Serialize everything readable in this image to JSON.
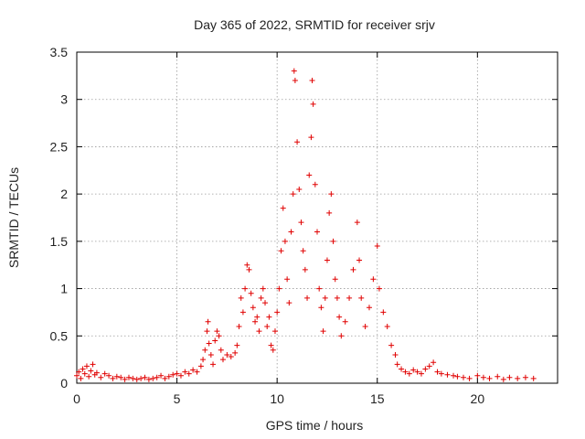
{
  "chart_data": {
    "type": "scatter",
    "title": "Day 365 of 2022, SRMTID for receiver srjv",
    "xlabel": "GPS time / hours",
    "ylabel": "SRMTID / TECUs",
    "xlim": [
      0,
      24
    ],
    "ylim": [
      0,
      3.5
    ],
    "xticks": [
      0,
      5,
      10,
      15,
      20
    ],
    "xtick_labels": [
      "0",
      "5",
      "10",
      "15",
      "20"
    ],
    "yticks": [
      0,
      0.5,
      1,
      1.5,
      2,
      2.5,
      3,
      3.5
    ],
    "ytick_labels": [
      "0",
      "0.5",
      "1",
      "1.5",
      "2",
      "2.5",
      "3",
      "3.5"
    ],
    "grid": true,
    "marker": "plus",
    "color": "#e00000",
    "series": [
      {
        "name": "srjv",
        "points": [
          [
            0.0,
            0.08
          ],
          [
            0.1,
            0.12
          ],
          [
            0.2,
            0.05
          ],
          [
            0.3,
            0.15
          ],
          [
            0.4,
            0.1
          ],
          [
            0.5,
            0.18
          ],
          [
            0.6,
            0.07
          ],
          [
            0.7,
            0.13
          ],
          [
            0.8,
            0.2
          ],
          [
            0.9,
            0.09
          ],
          [
            1.0,
            0.11
          ],
          [
            1.2,
            0.06
          ],
          [
            1.4,
            0.1
          ],
          [
            1.6,
            0.08
          ],
          [
            1.8,
            0.05
          ],
          [
            2.0,
            0.07
          ],
          [
            2.2,
            0.06
          ],
          [
            2.4,
            0.04
          ],
          [
            2.6,
            0.06
          ],
          [
            2.8,
            0.05
          ],
          [
            3.0,
            0.04
          ],
          [
            3.2,
            0.05
          ],
          [
            3.4,
            0.06
          ],
          [
            3.6,
            0.04
          ],
          [
            3.8,
            0.05
          ],
          [
            4.0,
            0.06
          ],
          [
            4.2,
            0.08
          ],
          [
            4.4,
            0.05
          ],
          [
            4.6,
            0.07
          ],
          [
            4.8,
            0.09
          ],
          [
            5.0,
            0.1
          ],
          [
            5.2,
            0.08
          ],
          [
            5.4,
            0.12
          ],
          [
            5.6,
            0.1
          ],
          [
            5.8,
            0.14
          ],
          [
            6.0,
            0.12
          ],
          [
            6.2,
            0.18
          ],
          [
            6.3,
            0.25
          ],
          [
            6.4,
            0.35
          ],
          [
            6.5,
            0.55
          ],
          [
            6.55,
            0.65
          ],
          [
            6.6,
            0.42
          ],
          [
            6.7,
            0.3
          ],
          [
            6.8,
            0.2
          ],
          [
            6.9,
            0.45
          ],
          [
            7.0,
            0.55
          ],
          [
            7.1,
            0.5
          ],
          [
            7.2,
            0.35
          ],
          [
            7.3,
            0.25
          ],
          [
            7.5,
            0.3
          ],
          [
            7.7,
            0.28
          ],
          [
            7.9,
            0.32
          ],
          [
            8.0,
            0.4
          ],
          [
            8.1,
            0.6
          ],
          [
            8.2,
            0.9
          ],
          [
            8.3,
            0.75
          ],
          [
            8.4,
            1.0
          ],
          [
            8.5,
            1.25
          ],
          [
            8.6,
            1.2
          ],
          [
            8.7,
            0.95
          ],
          [
            8.8,
            0.8
          ],
          [
            8.9,
            0.65
          ],
          [
            9.0,
            0.7
          ],
          [
            9.1,
            0.55
          ],
          [
            9.2,
            0.9
          ],
          [
            9.3,
            1.0
          ],
          [
            9.4,
            0.85
          ],
          [
            9.5,
            0.6
          ],
          [
            9.6,
            0.7
          ],
          [
            9.7,
            0.4
          ],
          [
            9.8,
            0.35
          ],
          [
            9.9,
            0.55
          ],
          [
            10.0,
            0.75
          ],
          [
            10.1,
            1.0
          ],
          [
            10.2,
            1.4
          ],
          [
            10.3,
            1.85
          ],
          [
            10.4,
            1.5
          ],
          [
            10.5,
            1.1
          ],
          [
            10.6,
            0.85
          ],
          [
            10.7,
            1.6
          ],
          [
            10.8,
            2.0
          ],
          [
            10.85,
            3.3
          ],
          [
            10.9,
            3.2
          ],
          [
            11.0,
            2.55
          ],
          [
            11.1,
            2.05
          ],
          [
            11.2,
            1.7
          ],
          [
            11.3,
            1.4
          ],
          [
            11.4,
            1.2
          ],
          [
            11.5,
            0.9
          ],
          [
            11.6,
            2.2
          ],
          [
            11.7,
            2.6
          ],
          [
            11.75,
            3.2
          ],
          [
            11.8,
            2.95
          ],
          [
            11.9,
            2.1
          ],
          [
            12.0,
            1.6
          ],
          [
            12.1,
            1.0
          ],
          [
            12.2,
            0.8
          ],
          [
            12.3,
            0.55
          ],
          [
            12.4,
            0.9
          ],
          [
            12.5,
            1.3
          ],
          [
            12.6,
            1.8
          ],
          [
            12.7,
            2.0
          ],
          [
            12.8,
            1.5
          ],
          [
            12.9,
            1.1
          ],
          [
            13.0,
            0.9
          ],
          [
            13.1,
            0.7
          ],
          [
            13.2,
            0.5
          ],
          [
            13.4,
            0.65
          ],
          [
            13.6,
            0.9
          ],
          [
            13.8,
            1.2
          ],
          [
            14.0,
            1.7
          ],
          [
            14.1,
            1.3
          ],
          [
            14.2,
            0.9
          ],
          [
            14.4,
            0.6
          ],
          [
            14.6,
            0.8
          ],
          [
            14.8,
            1.1
          ],
          [
            15.0,
            1.45
          ],
          [
            15.1,
            1.0
          ],
          [
            15.3,
            0.75
          ],
          [
            15.5,
            0.6
          ],
          [
            15.7,
            0.4
          ],
          [
            15.9,
            0.3
          ],
          [
            16.0,
            0.2
          ],
          [
            16.2,
            0.15
          ],
          [
            16.4,
            0.12
          ],
          [
            16.6,
            0.1
          ],
          [
            16.8,
            0.14
          ],
          [
            17.0,
            0.12
          ],
          [
            17.2,
            0.1
          ],
          [
            17.4,
            0.15
          ],
          [
            17.6,
            0.18
          ],
          [
            17.8,
            0.22
          ],
          [
            18.0,
            0.12
          ],
          [
            18.2,
            0.1
          ],
          [
            18.5,
            0.09
          ],
          [
            18.8,
            0.08
          ],
          [
            19.0,
            0.07
          ],
          [
            19.3,
            0.06
          ],
          [
            19.6,
            0.05
          ],
          [
            20.0,
            0.08
          ],
          [
            20.3,
            0.06
          ],
          [
            20.6,
            0.05
          ],
          [
            21.0,
            0.07
          ],
          [
            21.3,
            0.04
          ],
          [
            21.6,
            0.06
          ],
          [
            22.0,
            0.05
          ],
          [
            22.4,
            0.06
          ],
          [
            22.8,
            0.05
          ]
        ]
      }
    ]
  }
}
